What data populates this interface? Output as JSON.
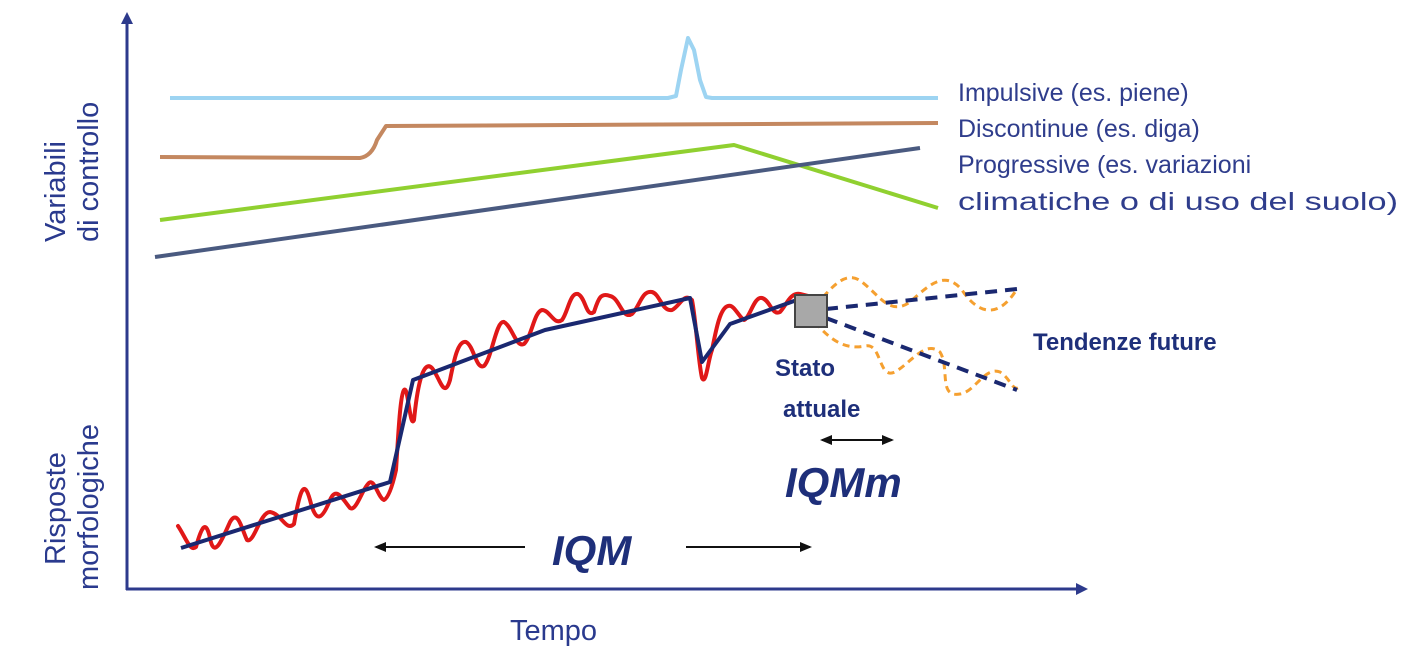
{
  "axes": {
    "y_top_label_line1": "Variabili",
    "y_top_label_line2": "di controllo",
    "y_bottom_label_line1": "Risposte",
    "y_bottom_label_line2": "morfologiche",
    "x_label": "Tempo"
  },
  "legend": {
    "impulsive": "Impulsive (es. piene)",
    "discontinue": "Discontinue (es. diga)",
    "progressive_line1": "Progressive (es. variazioni",
    "progressive_line2": "climatiche o di uso del suolo)"
  },
  "annotations": {
    "tendenze_future": "Tendenze future",
    "stato_line1": "Stato",
    "stato_line2": "attuale",
    "iqm": "IQM",
    "iqmm": "IQMm"
  },
  "colors": {
    "axis": "#2d3a8c",
    "impulsive": "#9dd4f2",
    "discontinue": "#c48860",
    "progressive_green": "#90d030",
    "progressive_slate": "#4a5a80",
    "response_red": "#e01818",
    "trend_navy": "#1a2870",
    "future_orange": "#f5a030",
    "state_box": "#a8a8a8"
  }
}
